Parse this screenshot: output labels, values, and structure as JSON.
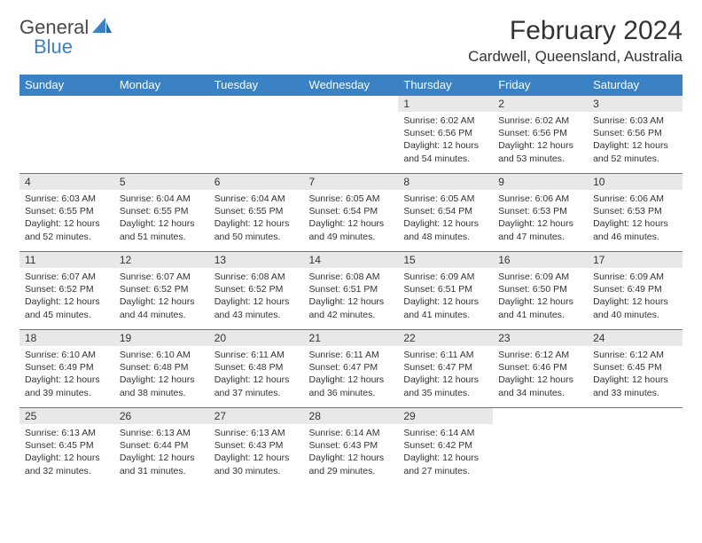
{
  "logo": {
    "text1": "General",
    "text2": "Blue"
  },
  "title": "February 2024",
  "location": "Cardwell, Queensland, Australia",
  "weekday_labels": [
    "Sunday",
    "Monday",
    "Tuesday",
    "Wednesday",
    "Thursday",
    "Friday",
    "Saturday"
  ],
  "colors": {
    "header_bg": "#3b82c4",
    "header_text": "#ffffff",
    "daynum_bg": "#e8e8e8",
    "text": "#333333",
    "border": "#3b82c4"
  },
  "fonts": {
    "title_size_pt": 22,
    "location_size_pt": 13,
    "th_size_pt": 10,
    "daynum_size_pt": 9,
    "body_size_pt": 8
  },
  "calendar": {
    "type": "table",
    "columns": 7,
    "rows": 5,
    "weeks": [
      [
        {
          "day": "",
          "lines": [
            "",
            "",
            "",
            ""
          ]
        },
        {
          "day": "",
          "lines": [
            "",
            "",
            "",
            ""
          ]
        },
        {
          "day": "",
          "lines": [
            "",
            "",
            "",
            ""
          ]
        },
        {
          "day": "",
          "lines": [
            "",
            "",
            "",
            ""
          ]
        },
        {
          "day": "1",
          "lines": [
            "Sunrise: 6:02 AM",
            "Sunset: 6:56 PM",
            "Daylight: 12 hours",
            "and 54 minutes."
          ]
        },
        {
          "day": "2",
          "lines": [
            "Sunrise: 6:02 AM",
            "Sunset: 6:56 PM",
            "Daylight: 12 hours",
            "and 53 minutes."
          ]
        },
        {
          "day": "3",
          "lines": [
            "Sunrise: 6:03 AM",
            "Sunset: 6:56 PM",
            "Daylight: 12 hours",
            "and 52 minutes."
          ]
        }
      ],
      [
        {
          "day": "4",
          "lines": [
            "Sunrise: 6:03 AM",
            "Sunset: 6:55 PM",
            "Daylight: 12 hours",
            "and 52 minutes."
          ]
        },
        {
          "day": "5",
          "lines": [
            "Sunrise: 6:04 AM",
            "Sunset: 6:55 PM",
            "Daylight: 12 hours",
            "and 51 minutes."
          ]
        },
        {
          "day": "6",
          "lines": [
            "Sunrise: 6:04 AM",
            "Sunset: 6:55 PM",
            "Daylight: 12 hours",
            "and 50 minutes."
          ]
        },
        {
          "day": "7",
          "lines": [
            "Sunrise: 6:05 AM",
            "Sunset: 6:54 PM",
            "Daylight: 12 hours",
            "and 49 minutes."
          ]
        },
        {
          "day": "8",
          "lines": [
            "Sunrise: 6:05 AM",
            "Sunset: 6:54 PM",
            "Daylight: 12 hours",
            "and 48 minutes."
          ]
        },
        {
          "day": "9",
          "lines": [
            "Sunrise: 6:06 AM",
            "Sunset: 6:53 PM",
            "Daylight: 12 hours",
            "and 47 minutes."
          ]
        },
        {
          "day": "10",
          "lines": [
            "Sunrise: 6:06 AM",
            "Sunset: 6:53 PM",
            "Daylight: 12 hours",
            "and 46 minutes."
          ]
        }
      ],
      [
        {
          "day": "11",
          "lines": [
            "Sunrise: 6:07 AM",
            "Sunset: 6:52 PM",
            "Daylight: 12 hours",
            "and 45 minutes."
          ]
        },
        {
          "day": "12",
          "lines": [
            "Sunrise: 6:07 AM",
            "Sunset: 6:52 PM",
            "Daylight: 12 hours",
            "and 44 minutes."
          ]
        },
        {
          "day": "13",
          "lines": [
            "Sunrise: 6:08 AM",
            "Sunset: 6:52 PM",
            "Daylight: 12 hours",
            "and 43 minutes."
          ]
        },
        {
          "day": "14",
          "lines": [
            "Sunrise: 6:08 AM",
            "Sunset: 6:51 PM",
            "Daylight: 12 hours",
            "and 42 minutes."
          ]
        },
        {
          "day": "15",
          "lines": [
            "Sunrise: 6:09 AM",
            "Sunset: 6:51 PM",
            "Daylight: 12 hours",
            "and 41 minutes."
          ]
        },
        {
          "day": "16",
          "lines": [
            "Sunrise: 6:09 AM",
            "Sunset: 6:50 PM",
            "Daylight: 12 hours",
            "and 41 minutes."
          ]
        },
        {
          "day": "17",
          "lines": [
            "Sunrise: 6:09 AM",
            "Sunset: 6:49 PM",
            "Daylight: 12 hours",
            "and 40 minutes."
          ]
        }
      ],
      [
        {
          "day": "18",
          "lines": [
            "Sunrise: 6:10 AM",
            "Sunset: 6:49 PM",
            "Daylight: 12 hours",
            "and 39 minutes."
          ]
        },
        {
          "day": "19",
          "lines": [
            "Sunrise: 6:10 AM",
            "Sunset: 6:48 PM",
            "Daylight: 12 hours",
            "and 38 minutes."
          ]
        },
        {
          "day": "20",
          "lines": [
            "Sunrise: 6:11 AM",
            "Sunset: 6:48 PM",
            "Daylight: 12 hours",
            "and 37 minutes."
          ]
        },
        {
          "day": "21",
          "lines": [
            "Sunrise: 6:11 AM",
            "Sunset: 6:47 PM",
            "Daylight: 12 hours",
            "and 36 minutes."
          ]
        },
        {
          "day": "22",
          "lines": [
            "Sunrise: 6:11 AM",
            "Sunset: 6:47 PM",
            "Daylight: 12 hours",
            "and 35 minutes."
          ]
        },
        {
          "day": "23",
          "lines": [
            "Sunrise: 6:12 AM",
            "Sunset: 6:46 PM",
            "Daylight: 12 hours",
            "and 34 minutes."
          ]
        },
        {
          "day": "24",
          "lines": [
            "Sunrise: 6:12 AM",
            "Sunset: 6:45 PM",
            "Daylight: 12 hours",
            "and 33 minutes."
          ]
        }
      ],
      [
        {
          "day": "25",
          "lines": [
            "Sunrise: 6:13 AM",
            "Sunset: 6:45 PM",
            "Daylight: 12 hours",
            "and 32 minutes."
          ]
        },
        {
          "day": "26",
          "lines": [
            "Sunrise: 6:13 AM",
            "Sunset: 6:44 PM",
            "Daylight: 12 hours",
            "and 31 minutes."
          ]
        },
        {
          "day": "27",
          "lines": [
            "Sunrise: 6:13 AM",
            "Sunset: 6:43 PM",
            "Daylight: 12 hours",
            "and 30 minutes."
          ]
        },
        {
          "day": "28",
          "lines": [
            "Sunrise: 6:14 AM",
            "Sunset: 6:43 PM",
            "Daylight: 12 hours",
            "and 29 minutes."
          ]
        },
        {
          "day": "29",
          "lines": [
            "Sunrise: 6:14 AM",
            "Sunset: 6:42 PM",
            "Daylight: 12 hours",
            "and 27 minutes."
          ]
        },
        {
          "day": "",
          "lines": [
            "",
            "",
            "",
            ""
          ]
        },
        {
          "day": "",
          "lines": [
            "",
            "",
            "",
            ""
          ]
        }
      ]
    ]
  }
}
